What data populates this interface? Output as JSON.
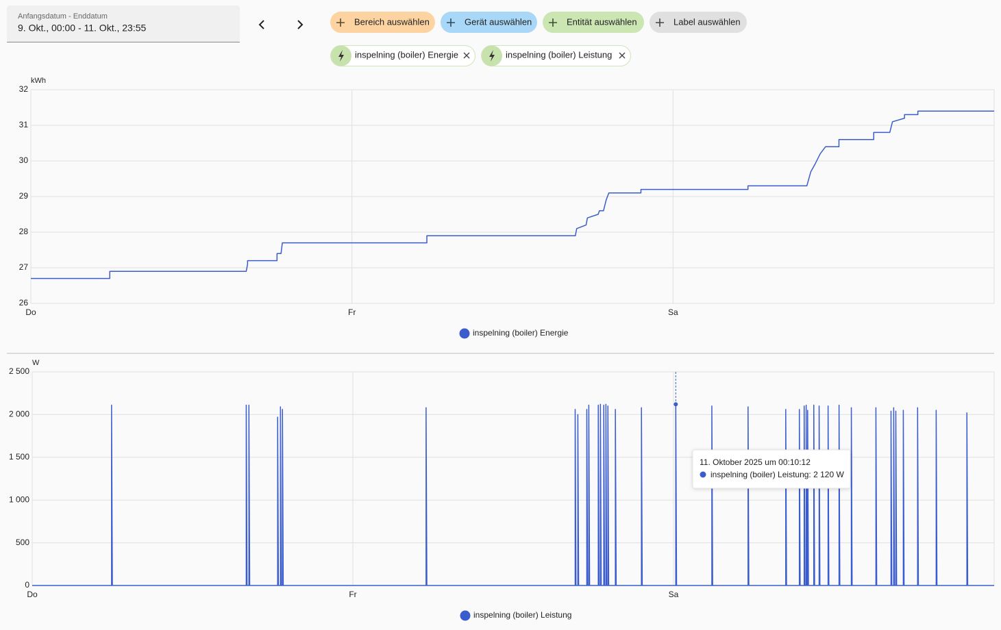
{
  "header": {
    "date_range_label": "Anfangsdatum - Enddatum",
    "date_range": "9. Okt., 00:00 - 11. Okt., 23:55",
    "chips": [
      "Bereich auswählen",
      "Gerät auswählen",
      "Entität auswählen",
      "Label auswählen"
    ],
    "entities": [
      "inspelning (boiler) Energie",
      "inspelning (boiler) Leistung"
    ]
  },
  "chart_data": [
    {
      "type": "line",
      "y_label": "kWh",
      "grid": true,
      "xlim": [
        0,
        72
      ],
      "xticks": [
        {
          "value": 0,
          "label": "Do"
        },
        {
          "value": 24,
          "label": "Fr"
        },
        {
          "value": 48,
          "label": "Sa"
        }
      ],
      "ylim": [
        26,
        32
      ],
      "yticks": [
        26,
        27,
        28,
        29,
        30,
        31,
        32
      ],
      "x": [
        0,
        5.9,
        5.9,
        16.1,
        16.2,
        16.2,
        18.4,
        18.4,
        18.7,
        18.8,
        29.6,
        29.6,
        40.7,
        40.8,
        41.5,
        41.6,
        42.4,
        42.5,
        42.8,
        43.0,
        43.2,
        45.6,
        45.6,
        53.6,
        53.6,
        58.0,
        58.3,
        58.6,
        59.0,
        59.4,
        60.4,
        60.4,
        63.0,
        63.0,
        64.2,
        64.4,
        65.3,
        65.3,
        66.3,
        66.3,
        72
      ],
      "series": [
        {
          "name": "inspelning (boiler) Energie",
          "color": "#3b5ccc",
          "values": [
            26.7,
            26.7,
            26.9,
            26.9,
            27.1,
            27.2,
            27.2,
            27.4,
            27.4,
            27.7,
            27.7,
            27.9,
            27.9,
            28.1,
            28.2,
            28.4,
            28.5,
            28.6,
            28.6,
            28.9,
            29.1,
            29.1,
            29.2,
            29.2,
            29.3,
            29.3,
            29.7,
            29.9,
            30.2,
            30.4,
            30.4,
            30.6,
            30.6,
            30.8,
            30.8,
            31.1,
            31.2,
            31.3,
            31.3,
            31.4,
            31.4
          ]
        }
      ]
    },
    {
      "type": "line",
      "y_label": "W",
      "grid": true,
      "xlim": [
        0,
        72
      ],
      "xticks": [
        {
          "value": 0,
          "label": "Do"
        },
        {
          "value": 24,
          "label": "Fr"
        },
        {
          "value": 48,
          "label": "Sa"
        }
      ],
      "ylim": [
        0,
        2500
      ],
      "yticks": [
        0,
        500,
        {
          "value": 1000,
          "label": "1 000"
        },
        {
          "value": 1500,
          "label": "1 500"
        },
        {
          "value": 2000,
          "label": "2 000"
        },
        {
          "value": 2500,
          "label": "2 500"
        }
      ],
      "x": [
        0,
        5.94,
        5.94,
        6.0,
        16.02,
        16.02,
        16.08,
        16.22,
        16.22,
        16.28,
        18.37,
        18.37,
        18.43,
        18.58,
        18.58,
        18.64,
        18.73,
        18.73,
        18.79,
        29.48,
        29.48,
        29.54,
        40.64,
        40.64,
        40.7,
        40.84,
        40.84,
        40.9,
        41.51,
        41.51,
        41.57,
        41.66,
        41.66,
        41.72,
        42.37,
        42.37,
        42.43,
        42.53,
        42.53,
        42.59,
        42.78,
        42.78,
        42.84,
        42.94,
        42.94,
        43.0,
        43.09,
        43.09,
        43.15,
        43.65,
        43.65,
        43.71,
        45.6,
        45.6,
        45.66,
        48.17,
        48.17,
        48.23,
        50.87,
        50.87,
        50.93,
        53.58,
        53.58,
        53.64,
        56.4,
        56.4,
        56.46,
        57.42,
        57.42,
        57.48,
        57.78,
        57.78,
        57.84,
        57.93,
        57.93,
        57.99,
        58.04,
        58.04,
        58.1,
        58.5,
        58.5,
        58.56,
        58.9,
        58.9,
        58.96,
        59.57,
        59.57,
        59.63,
        60.39,
        60.39,
        60.45,
        61.31,
        61.31,
        61.37,
        63.15,
        63.15,
        63.21,
        64.28,
        64.28,
        64.34,
        64.48,
        64.48,
        64.54,
        64.64,
        64.64,
        64.7,
        65.2,
        65.2,
        65.26,
        66.27,
        66.27,
        66.33,
        67.66,
        67.66,
        67.72,
        69.96,
        69.96,
        70.02,
        72
      ],
      "series": [
        {
          "name": "inspelning (boiler) Leistung",
          "color": "#3b5ccc",
          "values": [
            0,
            0,
            2110,
            0,
            0,
            2110,
            0,
            0,
            2110,
            0,
            0,
            1970,
            0,
            0,
            2090,
            0,
            0,
            2060,
            0,
            0,
            2080,
            0,
            0,
            2060,
            0,
            0,
            2000,
            0,
            0,
            2060,
            0,
            0,
            2110,
            0,
            0,
            2110,
            0,
            0,
            2120,
            0,
            0,
            2110,
            0,
            0,
            2120,
            0,
            0,
            2100,
            0,
            0,
            2060,
            0,
            0,
            2080,
            0,
            0,
            2120,
            0,
            0,
            2100,
            0,
            0,
            2090,
            0,
            0,
            2060,
            0,
            0,
            2060,
            0,
            0,
            2100,
            0,
            0,
            2110,
            0,
            0,
            2050,
            0,
            0,
            2110,
            0,
            0,
            2100,
            0,
            0,
            2100,
            0,
            0,
            2110,
            0,
            0,
            2080,
            0,
            0,
            2080,
            0,
            0,
            2040,
            0,
            0,
            2080,
            0,
            0,
            2040,
            0,
            0,
            2050,
            0,
            0,
            2080,
            0,
            0,
            2050,
            0,
            0,
            2020,
            0,
            0
          ]
        }
      ],
      "tooltip": {
        "x": 48.17,
        "value": 2120,
        "title": "11. Oktober 2025 um 00:10:12",
        "text": "inspelning (boiler) Leistung: 2 120 W"
      }
    }
  ]
}
